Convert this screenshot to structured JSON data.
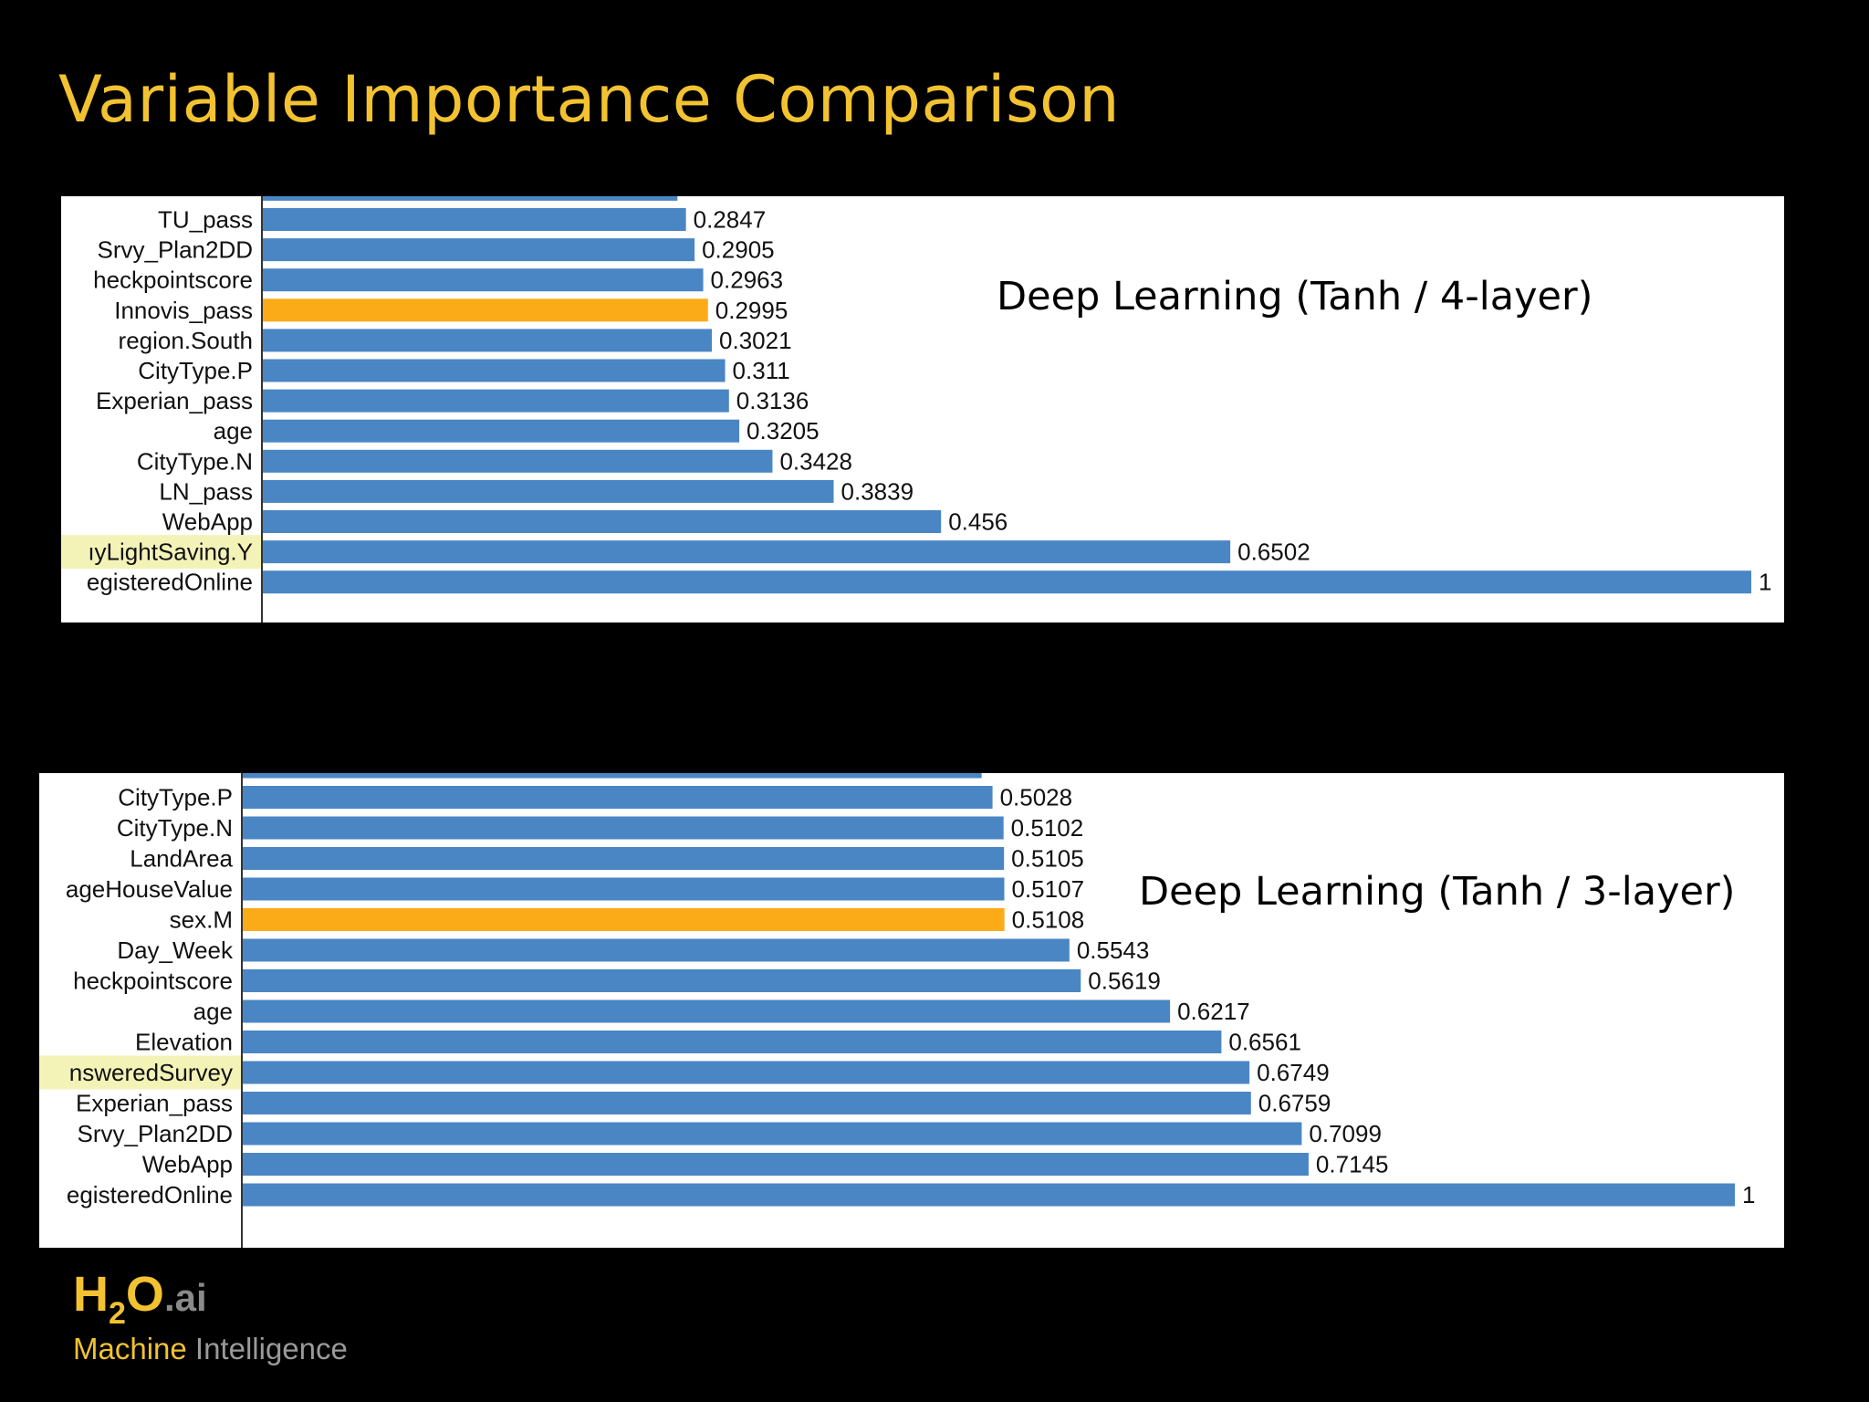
{
  "slide": {
    "title": "Variable Importance Comparison"
  },
  "colors": {
    "bar": "#4a86c4",
    "highlight_bar": "#fbab18",
    "label_highlight": "#f3f3b8",
    "title": "#f2c230"
  },
  "chart_data": [
    {
      "type": "bar",
      "orientation": "horizontal",
      "title": "Deep Learning (Tanh / 4-layer)",
      "xlim": [
        0,
        1
      ],
      "categories": [
        "TU_pass",
        "Srvy_Plan2DD",
        "heckpointscore",
        "Innovis_pass",
        "region.South",
        "CityType.P",
        "Experian_pass",
        "age",
        "CityType.N",
        "LN_pass",
        "WebApp",
        "ıyLightSaving.Y",
        "egisteredOnline"
      ],
      "values": [
        0.2847,
        0.2905,
        0.2963,
        0.2995,
        0.3021,
        0.311,
        0.3136,
        0.3205,
        0.3428,
        0.3839,
        0.456,
        0.6502,
        1
      ],
      "value_labels": [
        "0.2847",
        "0.2905",
        "0.2963",
        "0.2995",
        "0.3021",
        "0.311",
        "0.3136",
        "0.3205",
        "0.3428",
        "0.3839",
        "0.456",
        "0.6502",
        "1"
      ],
      "partial_top_value": 0.279,
      "highlight_bar_index": 3,
      "highlight_label_index": 11
    },
    {
      "type": "bar",
      "orientation": "horizontal",
      "title": "Deep Learning (Tanh / 3-layer)",
      "xlim": [
        0,
        1
      ],
      "categories": [
        "CityType.P",
        "CityType.N",
        "LandArea",
        "ageHouseValue",
        "sex.M",
        "Day_Week",
        "heckpointscore",
        "age",
        "Elevation",
        "nsweredSurvey",
        "Experian_pass",
        "Srvy_Plan2DD",
        "WebApp",
        "egisteredOnline"
      ],
      "values": [
        0.5028,
        0.5102,
        0.5105,
        0.5107,
        0.5108,
        0.5543,
        0.5619,
        0.6217,
        0.6561,
        0.6749,
        0.6759,
        0.7099,
        0.7145,
        1
      ],
      "value_labels": [
        "0.5028",
        "0.5102",
        "0.5105",
        "0.5107",
        "0.5108",
        "0.5543",
        "0.5619",
        "0.6217",
        "0.6561",
        "0.6749",
        "0.6759",
        "0.7099",
        "0.7145",
        "1"
      ],
      "partial_top_value": 0.4955,
      "highlight_bar_index": 4,
      "highlight_label_index": 9
    }
  ],
  "logo": {
    "h": "H",
    "sub": "2",
    "o": "O",
    "ai": ".ai",
    "tagline_1": "Machine",
    "tagline_2": " Intelligence"
  }
}
